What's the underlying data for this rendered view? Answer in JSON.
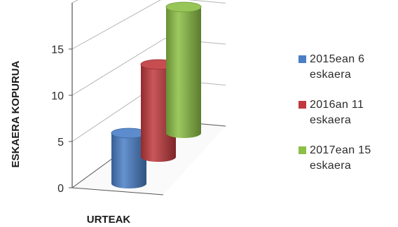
{
  "chart_data": {
    "type": "bar",
    "style": "3d-cylinder",
    "title": "",
    "xlabel": "URTEAK",
    "ylabel": "ESKAERA KOPURUA",
    "ylim": [
      0,
      15
    ],
    "yticks": [
      "0",
      "5",
      "10",
      "15"
    ],
    "grid": true,
    "legend_position": "right",
    "series": [
      {
        "name": "2015ean 6\neskaera",
        "values": [
          6
        ],
        "color": "#4a7fc7"
      },
      {
        "name": "2016an 11\neskaera",
        "values": [
          11
        ],
        "color": "#c0393d"
      },
      {
        "name": "2017ean 15\neskaera",
        "values": [
          15
        ],
        "color": "#8cbf45"
      }
    ]
  }
}
